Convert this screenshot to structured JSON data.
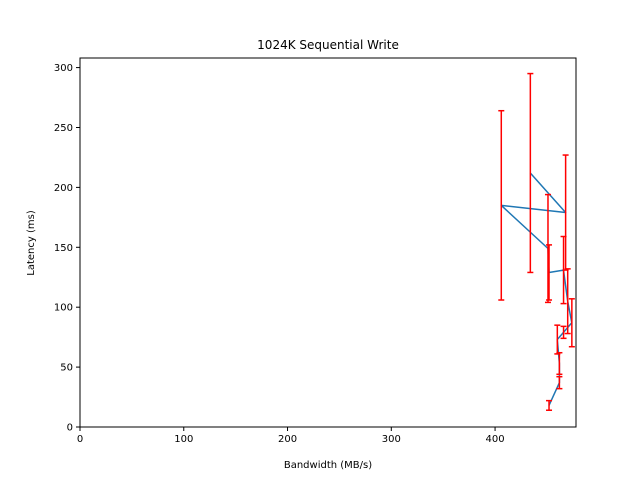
{
  "chart_data": {
    "type": "line",
    "title": "1024K  Sequential Write",
    "xlabel": "Bandwidth (MB/s)",
    "ylabel": "Latency (ms)",
    "xlim": [
      0,
      478
    ],
    "ylim": [
      0,
      308
    ],
    "xticks": [
      0,
      100,
      200,
      300,
      400
    ],
    "yticks": [
      0,
      50,
      100,
      150,
      200,
      250,
      300
    ],
    "grid": false,
    "legend": "none",
    "colors": {
      "line": "#1f77b4",
      "errorbar": "#ff0000"
    },
    "series": [
      {
        "x": [
          452,
          462,
          462,
          460,
          466,
          474,
          470,
          466,
          452,
          451,
          406,
          468,
          434
        ],
        "y": [
          18,
          37,
          53,
          73,
          79,
          87,
          105,
          131,
          129,
          149,
          185,
          179,
          212
        ],
        "yerr": [
          4,
          5,
          9,
          12,
          5,
          20,
          27,
          28,
          23,
          45,
          79,
          48,
          83
        ]
      }
    ]
  }
}
